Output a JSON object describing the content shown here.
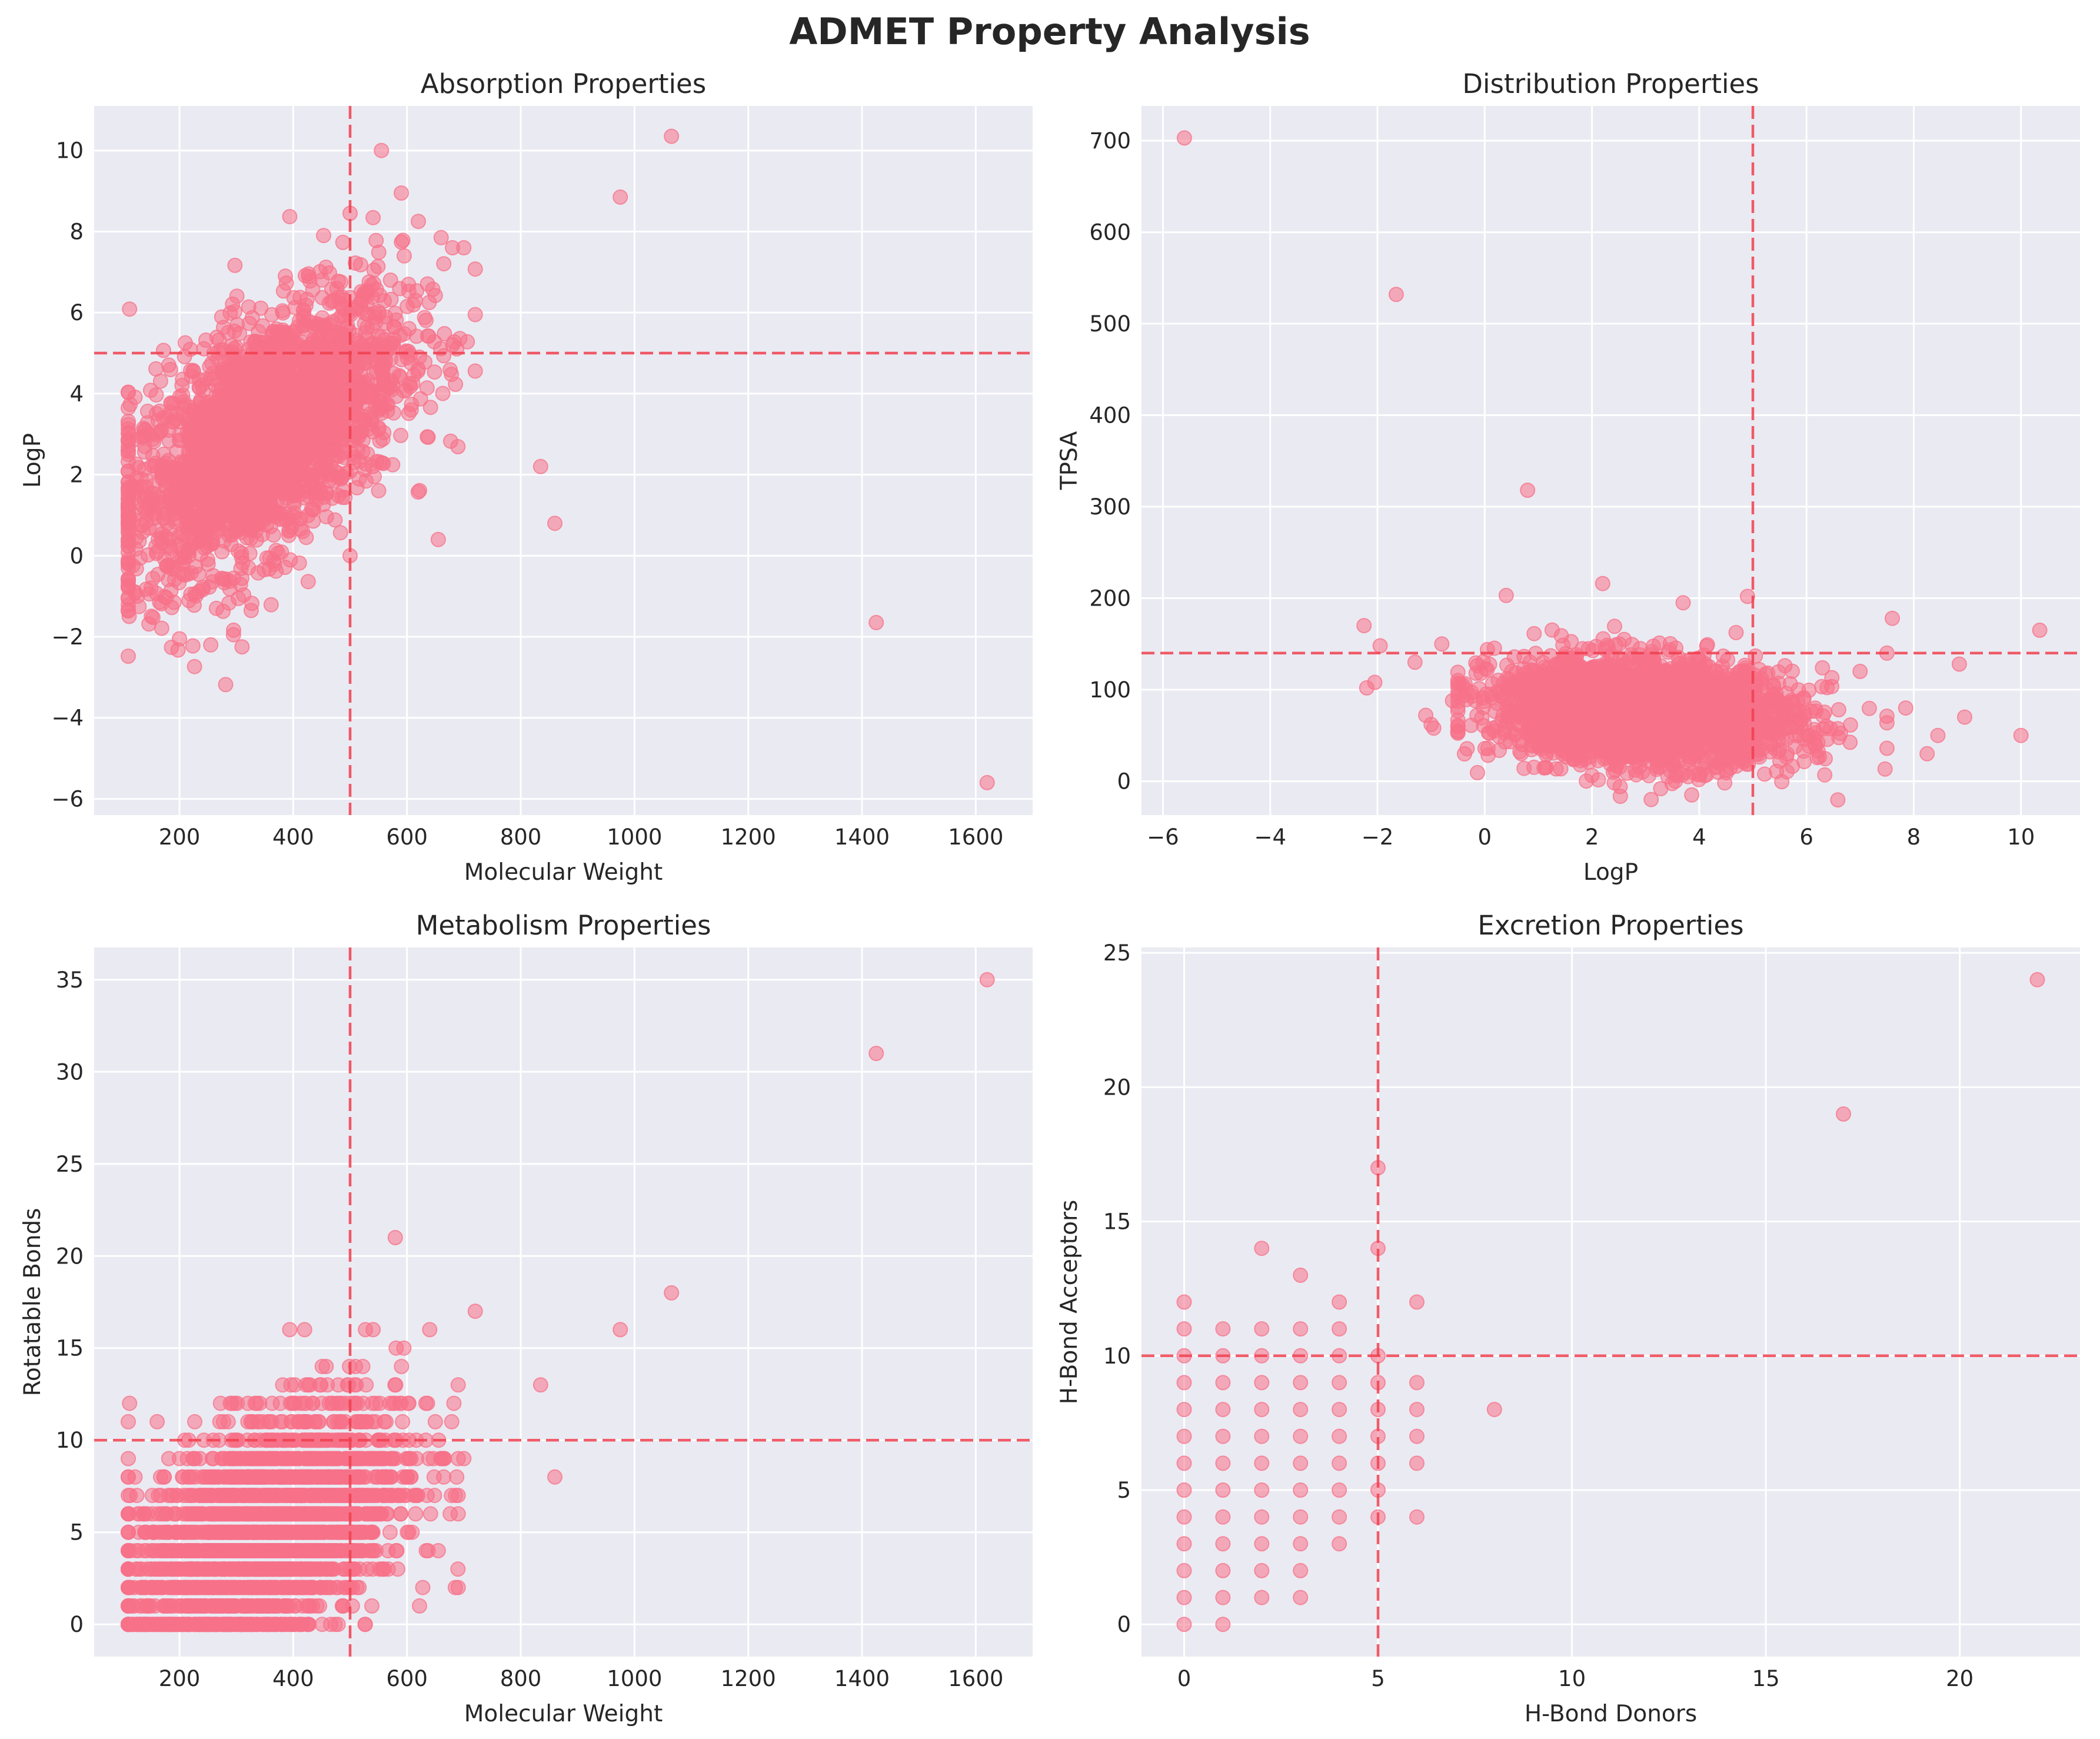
{
  "figure": {
    "title": "ADMET Property Analysis"
  },
  "colors": {
    "points": "#f77189",
    "reference_line": "#f0404f",
    "background": "#eaeaf2",
    "grid": "#ffffff"
  },
  "chart_data": [
    {
      "type": "scatter",
      "title": "Absorption Properties",
      "xlabel": "Molecular Weight",
      "ylabel": "LogP",
      "xlim": [
        50,
        1700
      ],
      "ylim": [
        -6.4,
        11.1
      ],
      "xticks": [
        200,
        400,
        600,
        800,
        1000,
        1200,
        1400,
        1600
      ],
      "yticks": [
        -6,
        -4,
        -2,
        0,
        2,
        4,
        6,
        8,
        10
      ],
      "grid": true,
      "reference_lines": {
        "vertical": 500,
        "horizontal": 5
      },
      "cluster": {
        "description": "dense cloud",
        "x_center": 350,
        "x_spread": 120,
        "y_center": 3,
        "y_spread": 1.4,
        "slope": 0.008,
        "x_range": [
          110,
          720
        ],
        "count": 2600
      },
      "points": [
        [
          1065,
          10.35
        ],
        [
          975,
          8.85
        ],
        [
          555,
          10.0
        ],
        [
          590,
          8.95
        ],
        [
          500,
          8.45
        ],
        [
          620,
          8.25
        ],
        [
          660,
          7.85
        ],
        [
          700,
          7.6
        ],
        [
          680,
          7.6
        ],
        [
          835,
          2.2
        ],
        [
          860,
          0.8
        ],
        [
          1425,
          -1.65
        ],
        [
          1620,
          -5.6
        ],
        [
          720,
          5.95
        ],
        [
          655,
          0.4
        ],
        [
          310,
          -2.25
        ],
        [
          200,
          -2.05
        ],
        [
          255,
          -2.2
        ],
        [
          295,
          -1.95
        ],
        [
          500,
          0.0
        ],
        [
          150,
          -0.8
        ],
        [
          220,
          -0.95
        ],
        [
          265,
          -1.3
        ]
      ]
    },
    {
      "type": "scatter",
      "title": "Distribution Properties",
      "xlabel": "LogP",
      "ylabel": "TPSA",
      "xlim": [
        -6.4,
        11.1
      ],
      "ylim": [
        -37,
        738
      ],
      "xticks": [
        -6,
        -4,
        -2,
        0,
        2,
        4,
        6,
        8,
        10
      ],
      "yticks": [
        0,
        100,
        200,
        300,
        400,
        500,
        600,
        700
      ],
      "grid": true,
      "reference_lines": {
        "vertical": 5,
        "horizontal": 140
      },
      "cluster": {
        "description": "dense cloud",
        "x_center": 3,
        "x_spread": 1.4,
        "y_center": 75,
        "y_spread": 28,
        "slope": -3,
        "x_range": [
          -0.5,
          7.5
        ],
        "count": 2600
      },
      "points": [
        [
          -5.6,
          703
        ],
        [
          -1.65,
          532
        ],
        [
          0.8,
          318
        ],
        [
          2.2,
          216
        ],
        [
          3.7,
          195
        ],
        [
          4.9,
          202
        ],
        [
          0.4,
          203
        ],
        [
          10.35,
          165
        ],
        [
          8.85,
          128
        ],
        [
          8.95,
          70
        ],
        [
          10.0,
          50
        ],
        [
          8.45,
          50
        ],
        [
          8.25,
          30
        ],
        [
          7.6,
          178
        ],
        [
          7.85,
          80
        ],
        [
          -2.25,
          170
        ],
        [
          -2.05,
          108
        ],
        [
          -2.2,
          102
        ],
        [
          -1.95,
          148
        ],
        [
          -0.8,
          150
        ],
        [
          -0.95,
          58
        ],
        [
          -1.3,
          130
        ],
        [
          -1.1,
          72
        ],
        [
          -1.0,
          62
        ],
        [
          -0.6,
          88
        ],
        [
          7.5,
          140
        ],
        [
          7.0,
          120
        ]
      ]
    },
    {
      "type": "scatter",
      "title": "Metabolism Properties",
      "xlabel": "Molecular Weight",
      "ylabel": "Rotatable Bonds",
      "xlim": [
        50,
        1700
      ],
      "ylim": [
        -1.75,
        36.75
      ],
      "xticks": [
        200,
        400,
        600,
        800,
        1000,
        1200,
        1400,
        1600
      ],
      "yticks": [
        0,
        5,
        10,
        15,
        20,
        25,
        30,
        35
      ],
      "grid": true,
      "reference_lines": {
        "vertical": 500,
        "horizontal": 10
      },
      "cluster": {
        "description": "integer bands",
        "x_center": 350,
        "x_spread": 120,
        "y_center": 5,
        "y_spread": 3,
        "slope": 0.014,
        "x_range": [
          110,
          690
        ],
        "count": 2600
      },
      "points": [
        [
          1620,
          35
        ],
        [
          1425,
          31
        ],
        [
          1065,
          18
        ],
        [
          975,
          16
        ],
        [
          720,
          17
        ],
        [
          835,
          13
        ],
        [
          860,
          8
        ],
        [
          690,
          2
        ],
        [
          685,
          2
        ],
        [
          500,
          2
        ],
        [
          655,
          4
        ],
        [
          640,
          16
        ],
        [
          420,
          16
        ],
        [
          700,
          9
        ],
        [
          200,
          9
        ]
      ]
    },
    {
      "type": "scatter",
      "title": "Excretion Properties",
      "xlabel": "H-Bond Donors",
      "ylabel": "H-Bond Acceptors",
      "xlim": [
        -1.1,
        23.1
      ],
      "ylim": [
        -1.2,
        25.2
      ],
      "xticks": [
        0,
        5,
        10,
        15,
        20
      ],
      "yticks": [
        0,
        5,
        10,
        15,
        20,
        25
      ],
      "grid": true,
      "reference_lines": {
        "vertical": 5,
        "horizontal": 10
      },
      "points": [
        [
          0,
          0
        ],
        [
          0,
          1
        ],
        [
          0,
          2
        ],
        [
          0,
          3
        ],
        [
          0,
          4
        ],
        [
          0,
          5
        ],
        [
          0,
          6
        ],
        [
          0,
          7
        ],
        [
          0,
          8
        ],
        [
          0,
          9
        ],
        [
          0,
          10
        ],
        [
          0,
          11
        ],
        [
          0,
          12
        ],
        [
          1,
          0
        ],
        [
          1,
          1
        ],
        [
          1,
          2
        ],
        [
          1,
          3
        ],
        [
          1,
          4
        ],
        [
          1,
          5
        ],
        [
          1,
          6
        ],
        [
          1,
          7
        ],
        [
          1,
          8
        ],
        [
          1,
          9
        ],
        [
          1,
          10
        ],
        [
          1,
          11
        ],
        [
          2,
          1
        ],
        [
          2,
          2
        ],
        [
          2,
          3
        ],
        [
          2,
          4
        ],
        [
          2,
          5
        ],
        [
          2,
          6
        ],
        [
          2,
          7
        ],
        [
          2,
          8
        ],
        [
          2,
          9
        ],
        [
          2,
          10
        ],
        [
          2,
          11
        ],
        [
          2,
          14
        ],
        [
          3,
          1
        ],
        [
          3,
          2
        ],
        [
          3,
          3
        ],
        [
          3,
          4
        ],
        [
          3,
          5
        ],
        [
          3,
          6
        ],
        [
          3,
          7
        ],
        [
          3,
          8
        ],
        [
          3,
          9
        ],
        [
          3,
          10
        ],
        [
          3,
          11
        ],
        [
          3,
          13
        ],
        [
          4,
          3
        ],
        [
          4,
          4
        ],
        [
          4,
          5
        ],
        [
          4,
          6
        ],
        [
          4,
          7
        ],
        [
          4,
          8
        ],
        [
          4,
          9
        ],
        [
          4,
          10
        ],
        [
          4,
          11
        ],
        [
          4,
          12
        ],
        [
          5,
          4
        ],
        [
          5,
          5
        ],
        [
          5,
          6
        ],
        [
          5,
          7
        ],
        [
          5,
          8
        ],
        [
          5,
          9
        ],
        [
          5,
          10
        ],
        [
          5,
          14
        ],
        [
          5,
          17
        ],
        [
          6,
          4
        ],
        [
          6,
          6
        ],
        [
          6,
          7
        ],
        [
          6,
          8
        ],
        [
          6,
          9
        ],
        [
          6,
          12
        ],
        [
          8,
          8
        ],
        [
          17,
          19
        ],
        [
          22,
          24
        ]
      ]
    }
  ]
}
